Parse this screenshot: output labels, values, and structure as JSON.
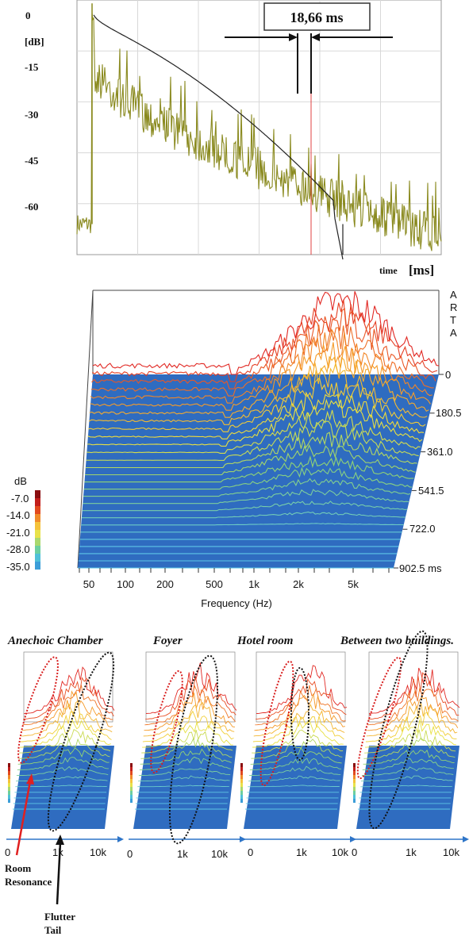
{
  "chart_data": [
    {
      "type": "line",
      "ylabel": "[dB]",
      "xlabel_prefix": "time",
      "xlabel": "[ms]",
      "y_ticks": [
        "0",
        "-15",
        "-30",
        "-45",
        "-60"
      ],
      "ylim": [
        -75,
        0
      ],
      "annotation": "18,66 ms",
      "series": [
        {
          "name": "",
          "kind": "impulse-response",
          "color": "#8a8a1f"
        },
        {
          "name": "",
          "kind": "schroeder-decay",
          "color": "#222222"
        }
      ],
      "grid": true
    },
    {
      "type": "area",
      "side_label": [
        "A",
        "R",
        "T",
        "A"
      ],
      "xlabel": "Frequency (Hz)",
      "x_ticks": [
        "50",
        "100",
        "200",
        "500",
        "1k",
        "2k",
        "5k"
      ],
      "time_ticks": [
        "0",
        "180.5",
        "361.0",
        "541.5",
        "722.0",
        "902.5 ms"
      ],
      "colorbar_title": "dB",
      "colorbar_ticks": [
        "-7.0",
        "-14.0",
        "-21.0",
        "-28.0",
        "-35.0"
      ],
      "zlim": [
        -35,
        0
      ]
    }
  ],
  "panels": [
    {
      "caption": "Anechoic Chamber",
      "ticks": [
        "0",
        "1k",
        "10k"
      ]
    },
    {
      "caption": "Foyer",
      "ticks": [
        "0",
        "1k",
        "10k"
      ]
    },
    {
      "caption": "Hotel room",
      "ticks": [
        "0",
        "1k",
        "10k"
      ]
    },
    {
      "caption": "Between two buildings.",
      "ticks": [
        "0",
        "1k",
        "10k"
      ]
    }
  ],
  "annotations": {
    "room_resonance": "Room\nResonance",
    "flutter_tail": "Flutter\nTail"
  },
  "colors": {
    "impulse": "#8a8a1f",
    "decay": "#222222",
    "floor": "#2f6cc0",
    "red_ellipse": "#d81e1e",
    "black_ellipse": "#111111",
    "axis_arrow": "#2e75c8"
  }
}
